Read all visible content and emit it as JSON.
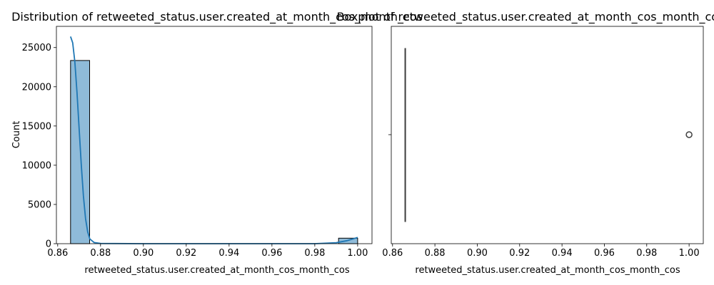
{
  "chart_data": [
    {
      "type": "histogram",
      "title": "Distribution of retweeted_status.user.created_at_month_cos_month_cos",
      "xlabel": "retweeted_status.user.created_at_month_cos_month_cos",
      "ylabel": "Count",
      "xlim": [
        0.8594,
        1.0067
      ],
      "ylim": [
        0,
        27700
      ],
      "xticks": [
        0.86,
        0.88,
        0.9,
        0.92,
        0.94,
        0.96,
        0.98,
        1.0
      ],
      "xtick_labels": [
        "0.86",
        "0.88",
        "0.90",
        "0.92",
        "0.94",
        "0.96",
        "0.98",
        "1.00"
      ],
      "yticks": [
        0,
        5000,
        10000,
        15000,
        20000,
        25000
      ],
      "ytick_labels": [
        "0",
        "5000",
        "10000",
        "15000",
        "20000",
        "25000"
      ],
      "bins": [
        {
          "x0": 0.866,
          "x1": 0.8749,
          "count": 23350
        },
        {
          "x0": 0.8749,
          "x1": 0.8839,
          "count": 0
        },
        {
          "x0": 0.8839,
          "x1": 0.8928,
          "count": 0
        },
        {
          "x0": 0.8928,
          "x1": 0.9017,
          "count": 0
        },
        {
          "x0": 0.9017,
          "x1": 0.9107,
          "count": 0
        },
        {
          "x0": 0.9107,
          "x1": 0.9196,
          "count": 0
        },
        {
          "x0": 0.9196,
          "x1": 0.9286,
          "count": 0
        },
        {
          "x0": 0.9286,
          "x1": 0.9375,
          "count": 0
        },
        {
          "x0": 0.9375,
          "x1": 0.9464,
          "count": 0
        },
        {
          "x0": 0.9464,
          "x1": 0.9554,
          "count": 0
        },
        {
          "x0": 0.9554,
          "x1": 0.9643,
          "count": 0
        },
        {
          "x0": 0.9643,
          "x1": 0.9732,
          "count": 0
        },
        {
          "x0": 0.9732,
          "x1": 0.9822,
          "count": 0
        },
        {
          "x0": 0.9822,
          "x1": 0.9911,
          "count": 0
        },
        {
          "x0": 0.9911,
          "x1": 1.0,
          "count": 700
        }
      ],
      "kde": {
        "x": [
          0.866,
          0.867,
          0.868,
          0.869,
          0.87,
          0.871,
          0.872,
          0.873,
          0.874,
          0.875,
          0.877,
          0.88,
          0.9,
          0.95,
          0.98,
          0.99,
          0.995,
          0.998,
          1.0
        ],
        "y": [
          26400,
          25600,
          23200,
          19300,
          14700,
          10100,
          6100,
          3200,
          1500,
          600,
          150,
          30,
          0,
          0,
          0,
          120,
          380,
          620,
          800
        ]
      },
      "bar_color": "#1f77b4",
      "line_color": "#1f77b4"
    },
    {
      "type": "boxplot",
      "title": "Boxplot of retweeted_status.user.created_at_month_cos_month_cos",
      "xlabel": "retweeted_status.user.created_at_month_cos_month_cos",
      "xlim": [
        0.8594,
        1.0067
      ],
      "xticks": [
        0.86,
        0.88,
        0.9,
        0.92,
        0.94,
        0.96,
        0.98,
        1.0
      ],
      "xtick_labels": [
        "0.86",
        "0.88",
        "0.90",
        "0.92",
        "0.94",
        "0.96",
        "0.98",
        "1.00"
      ],
      "box": {
        "whisker_low": 0.866,
        "q1": 0.866,
        "median": 0.866,
        "q3": 0.866,
        "whisker_high": 0.866
      },
      "outliers": [
        1.0
      ],
      "color": "#1f77b4"
    }
  ]
}
